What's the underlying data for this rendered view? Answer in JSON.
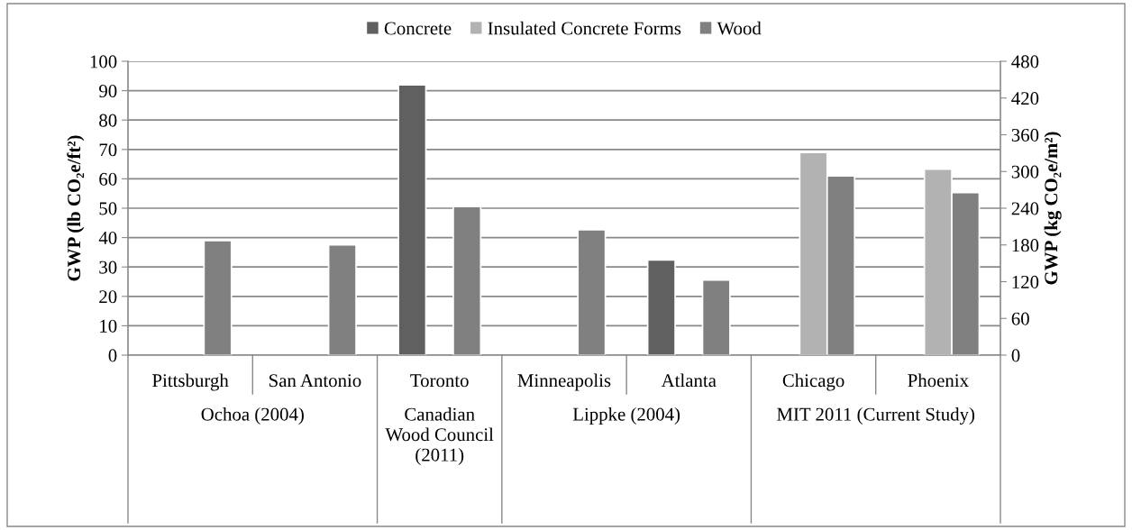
{
  "chart_data": {
    "type": "bar",
    "categories": [
      "Pittsburgh",
      "San Antonio",
      "Toronto",
      "Minneapolis",
      "Atlanta",
      "Chicago",
      "Phoenix"
    ],
    "series": [
      {
        "name": "Concrete",
        "color": "#606060",
        "values": [
          null,
          null,
          92,
          null,
          32.4,
          null,
          null
        ]
      },
      {
        "name": "Insulated Concrete Forms",
        "color": "#b2b2b2",
        "values": [
          null,
          null,
          null,
          null,
          null,
          69,
          63.3
        ]
      },
      {
        "name": "Wood",
        "color": "#808080",
        "values": [
          39,
          37.5,
          50.6,
          42.7,
          25.6,
          61,
          55.3
        ]
      }
    ],
    "ylabel": "GWP (lb CO₂e/ft²)",
    "y2label": "GWP (kg CO₂e/m²)",
    "ylim": [
      0,
      100
    ],
    "yticks": [
      0,
      10,
      20,
      30,
      40,
      50,
      60,
      70,
      80,
      90,
      100
    ],
    "y2lim": [
      0,
      480
    ],
    "y2ticks": [
      0,
      60,
      120,
      180,
      240,
      300,
      360,
      420,
      480
    ],
    "annotations": [
      "Ochoa (2004)",
      "Canadian Wood Council (2011)",
      "Lippke (2004)",
      "MIT 2011 (Current Study)"
    ],
    "grid": "y",
    "legend": "top"
  }
}
